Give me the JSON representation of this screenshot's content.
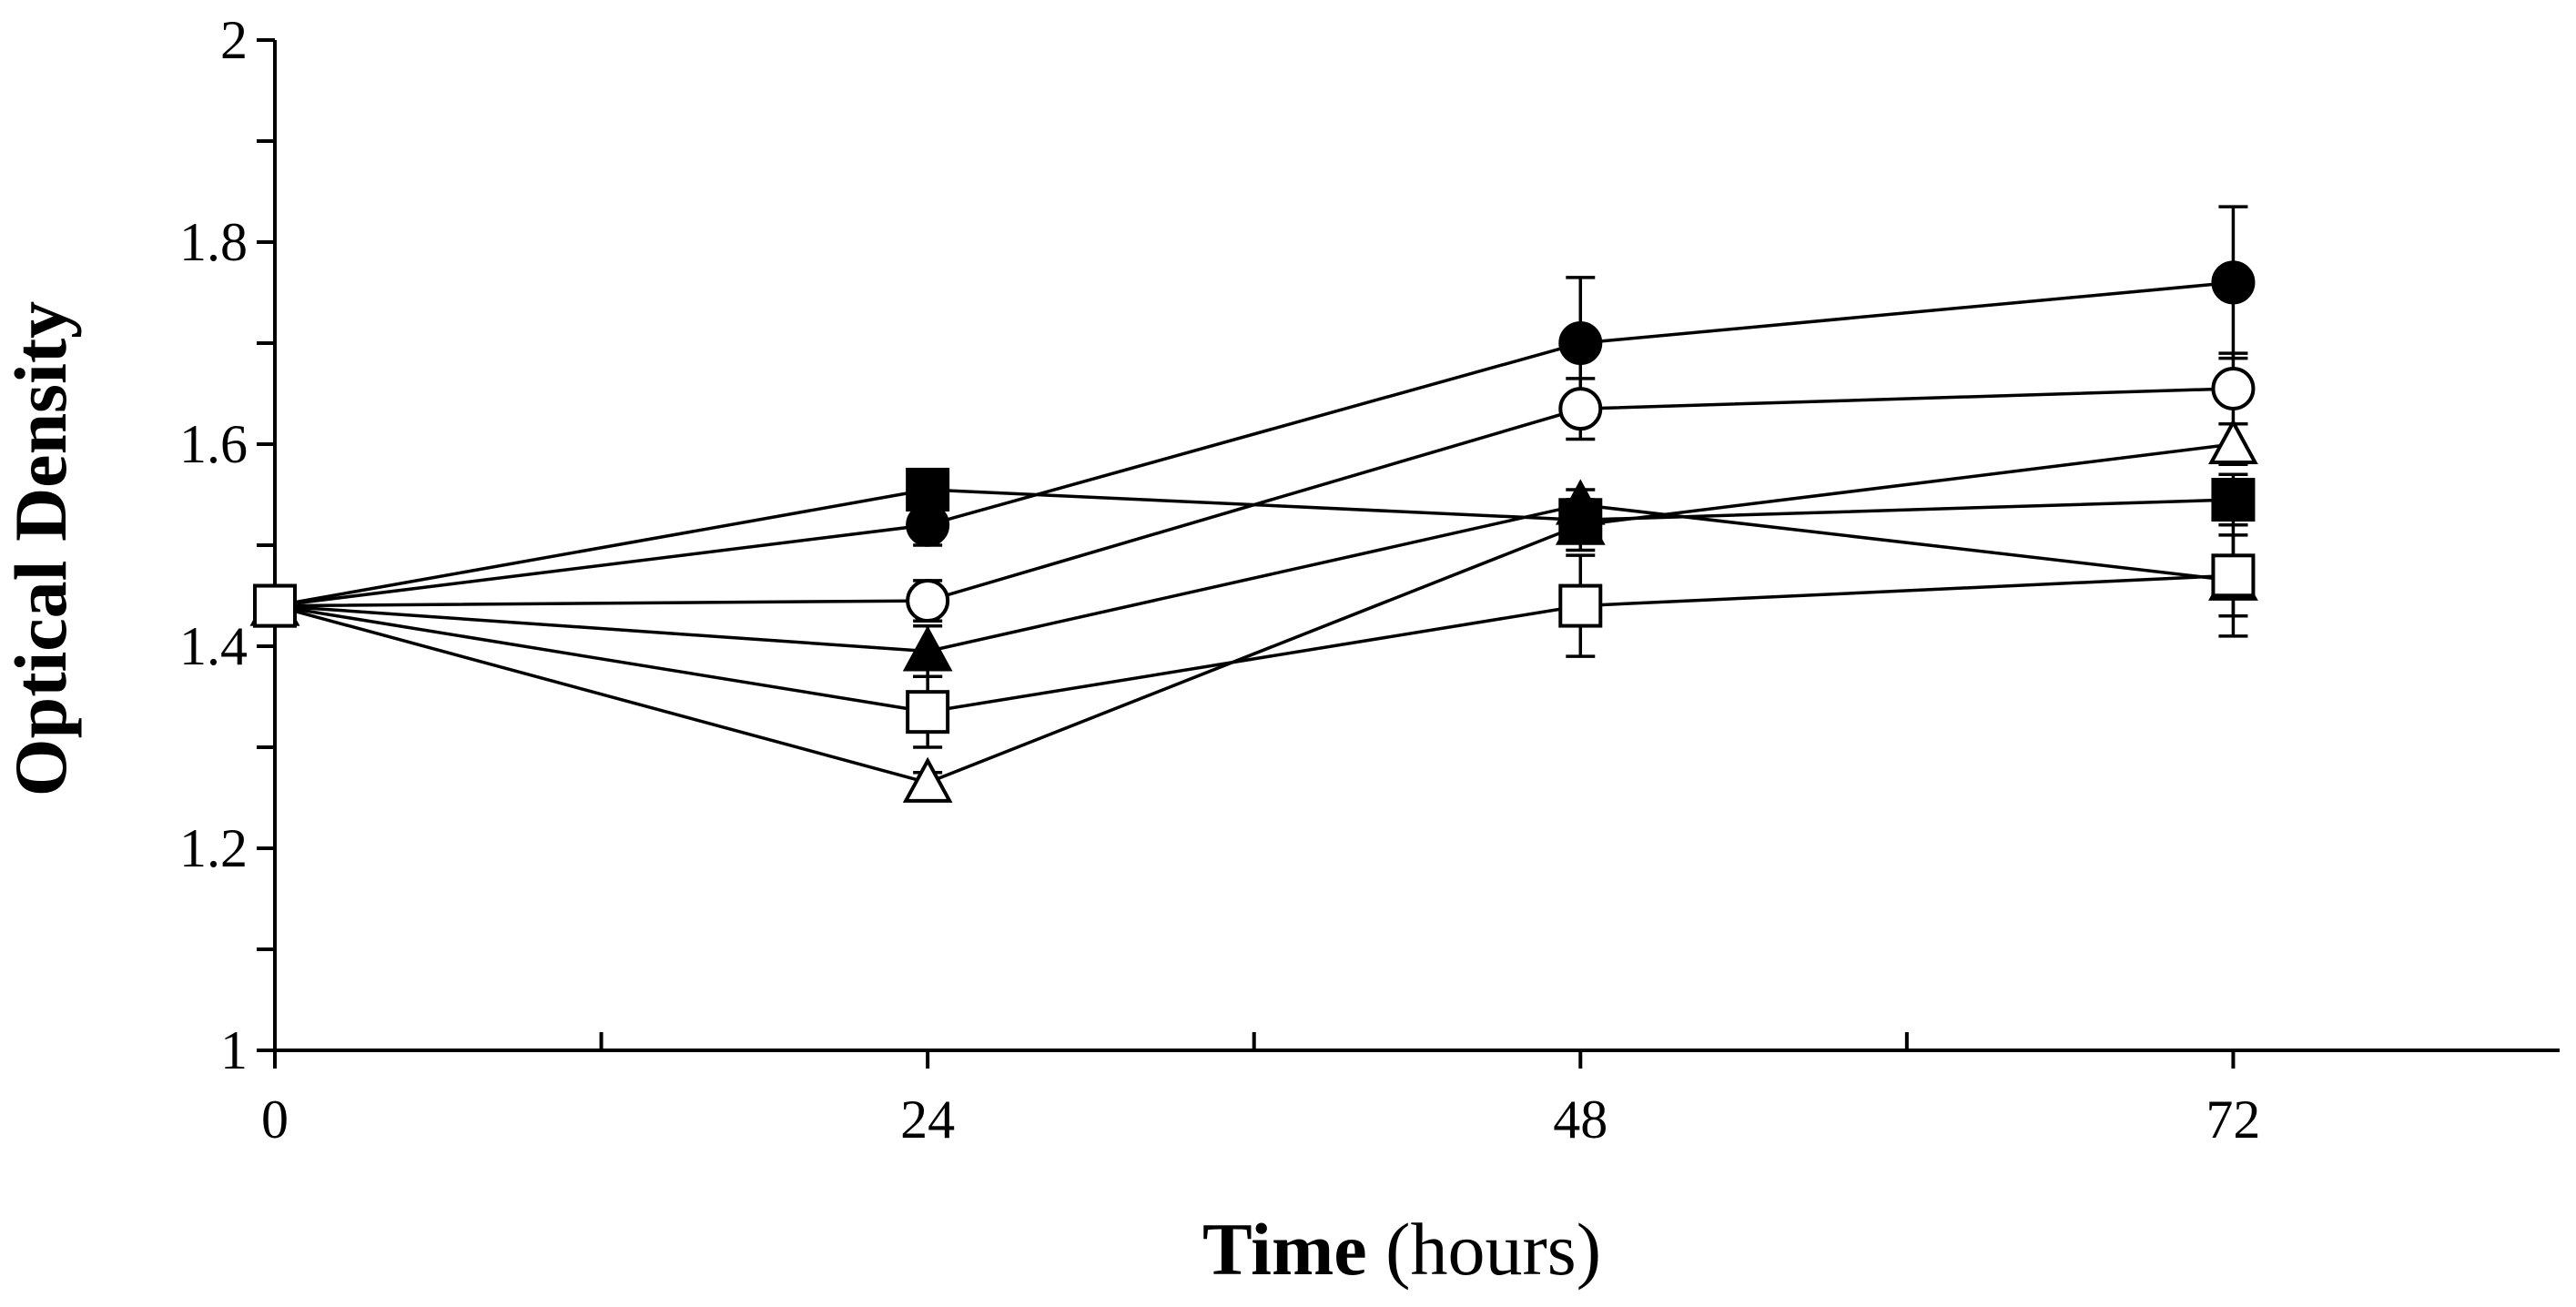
{
  "chart_data": {
    "type": "line",
    "title": "",
    "xlabel_bold": "Time",
    "xlabel_rest": " (hours)",
    "ylabel": "Optical Density",
    "x": [
      0,
      24,
      48,
      72
    ],
    "x_ticks": [
      "0",
      "24",
      "48",
      "72"
    ],
    "xlim": [
      0,
      84
    ],
    "ylim": [
      1,
      2
    ],
    "y_ticks": [
      "1",
      "1.2",
      "1.4",
      "1.6",
      "1.8",
      "2"
    ],
    "y_tick_values": [
      1,
      1.2,
      1.4,
      1.6,
      1.8,
      2
    ],
    "y_minor_values": [
      1.1,
      1.3,
      1.5,
      1.7,
      1.9
    ],
    "x_minor_values": [
      12,
      36,
      60
    ],
    "grid": false,
    "series": [
      {
        "name": "filled circle",
        "marker": "circle",
        "filled": true,
        "values": [
          1.44,
          1.52,
          1.7,
          1.76
        ],
        "errors": [
          0,
          0.02,
          0.065,
          0.075
        ]
      },
      {
        "name": "open circle",
        "marker": "circle",
        "filled": false,
        "values": [
          1.44,
          1.445,
          1.635,
          1.655
        ],
        "errors": [
          0,
          0.02,
          0.03,
          0.035
        ]
      },
      {
        "name": "open triangle",
        "marker": "triangle",
        "filled": false,
        "values": [
          1.44,
          1.265,
          1.52,
          1.6
        ],
        "errors": [
          0,
          0.01,
          0.025,
          0.02
        ]
      },
      {
        "name": "filled square",
        "marker": "square",
        "filled": true,
        "values": [
          1.44,
          1.555,
          1.525,
          1.545
        ],
        "errors": [
          0,
          0.01,
          0.02,
          0.025
        ]
      },
      {
        "name": "filled triangle",
        "marker": "triangle",
        "filled": true,
        "values": [
          1.44,
          1.395,
          1.54,
          1.465
        ],
        "errors": [
          0,
          0.025,
          0.015,
          0.055
        ]
      },
      {
        "name": "open square",
        "marker": "square",
        "filled": false,
        "values": [
          1.44,
          1.335,
          1.44,
          1.47
        ],
        "errors": [
          0,
          0.035,
          0.05,
          0.04
        ]
      }
    ]
  }
}
